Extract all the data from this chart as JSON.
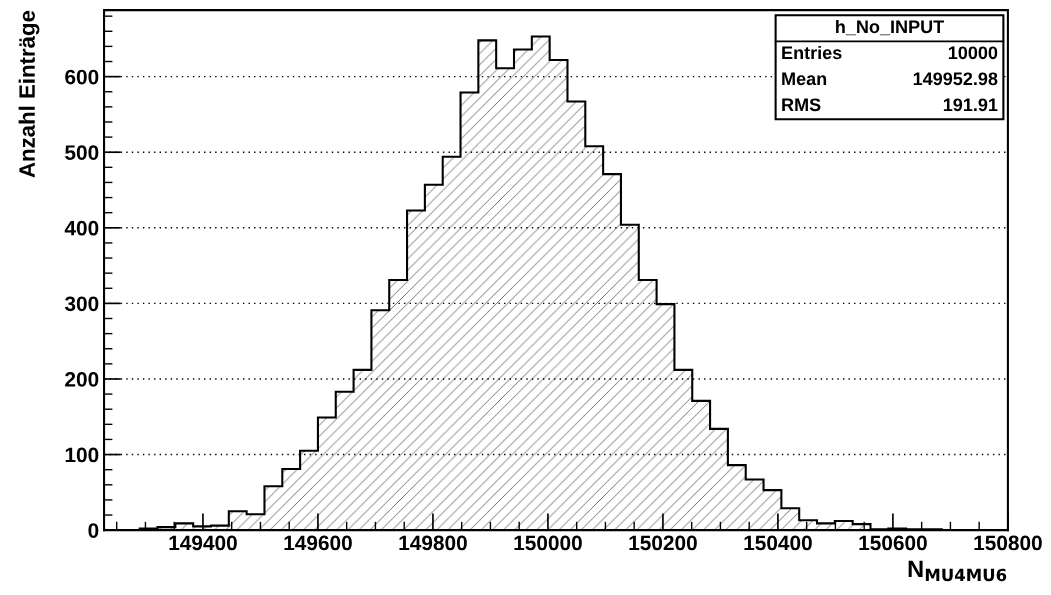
{
  "chart_data": {
    "type": "histogram",
    "xlabel": "N$_{MU4MU6}$",
    "ylabel": "Anzahl Einträge",
    "bins": [
      149228,
      149259,
      149290,
      149321,
      149352,
      149383,
      149414,
      149445,
      149476,
      149507,
      149538,
      149569,
      149600,
      149631,
      149662,
      149693,
      149724,
      149755,
      149786,
      149817,
      149848,
      149879,
      149910,
      149941,
      149972,
      150003,
      150034,
      150065,
      150096,
      150127,
      150158,
      150189,
      150220,
      150251,
      150282,
      150313,
      150344,
      150375,
      150406,
      150437,
      150468,
      150499,
      150530,
      150561,
      150592,
      150623,
      150654,
      150685,
      150716,
      150747,
      150778
    ],
    "values": [
      0,
      0,
      2,
      4,
      9,
      5,
      6,
      25,
      21,
      58,
      81,
      105,
      149,
      183,
      212,
      291,
      331,
      423,
      457,
      494,
      579,
      648,
      611,
      636,
      653,
      622,
      567,
      508,
      471,
      404,
      331,
      299,
      212,
      171,
      134,
      86,
      67,
      53,
      29,
      13,
      9,
      12,
      8,
      1,
      2,
      1,
      1,
      0,
      0,
      0
    ],
    "color": "#000000",
    "xlim": [
      149228,
      150800
    ],
    "xticks": [
      149400,
      149600,
      149800,
      150000,
      150200,
      150400,
      150600,
      150800
    ],
    "ylim": [
      0,
      688
    ],
    "yticks": [
      0,
      100,
      200,
      300,
      400,
      500,
      600
    ],
    "grid": "y",
    "annotations": [
      "h_No_INPUT",
      "Entries",
      "10000",
      "Mean",
      "149952.98",
      "RMS",
      "191.91"
    ]
  }
}
